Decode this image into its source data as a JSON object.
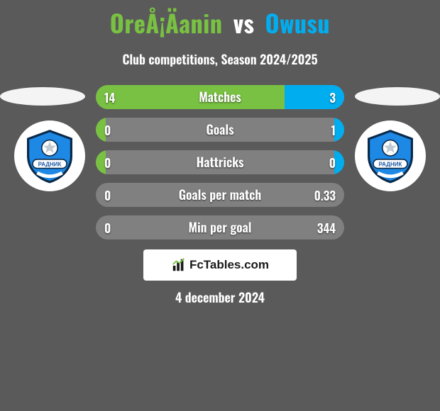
{
  "title": {
    "player1": "OreÅ¡Äanin",
    "vs": "vs",
    "player2": "Owusu"
  },
  "subtitle": "Club competitions, Season 2024/2025",
  "colors": {
    "player1": "#79c142",
    "player2": "#00aef0",
    "background": "#5a5a5a",
    "bar_neutral": "#808080",
    "text": "#ffffff"
  },
  "bars": [
    {
      "label": "Matches",
      "left_value": "14",
      "right_value": "3",
      "left_pct": 76,
      "right_pct": 24
    },
    {
      "label": "Goals",
      "left_value": "0",
      "right_value": "1",
      "left_pct": 4,
      "right_pct": 4
    },
    {
      "label": "Hattricks",
      "left_value": "0",
      "right_value": "0",
      "left_pct": 4,
      "right_pct": 4
    },
    {
      "label": "Goals per match",
      "left_value": "0",
      "right_value": "0.33",
      "left_pct": 0,
      "right_pct": 0
    },
    {
      "label": "Min per goal",
      "left_value": "0",
      "right_value": "344",
      "left_pct": 0,
      "right_pct": 0
    }
  ],
  "club_badge": {
    "stroke": "#0a2a4a",
    "fill": "#1e88e5",
    "ball_fill": "#ffffff",
    "ribbon_fill": "#ffffff"
  },
  "source_logo": "FcTables.com",
  "date": "4 december 2024"
}
